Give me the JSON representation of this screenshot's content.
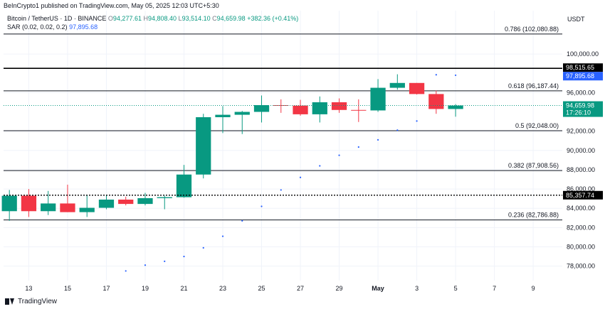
{
  "header": {
    "published": "BeInCrypto1 published on TradingView.com, May 05, 2025 12:03 UTC+5:30"
  },
  "legend": {
    "symbol": "Bitcoin / TetherUS · 1D · BINANCE",
    "o_label": "O",
    "o": "94,277.61",
    "h_label": "H",
    "h": "94,808.40",
    "l_label": "L",
    "l": "93,514.10",
    "c_label": "C",
    "c": "94,659.98",
    "change": "+382.36 (+0.41%)",
    "sar_label": "SAR (0.02, 0.02, 0.2)",
    "sar_value": "97,895.68"
  },
  "footer": {
    "brand": "TradingView"
  },
  "colors": {
    "up": "#089981",
    "down": "#f23645",
    "sar": "#2962ff",
    "line": "#131722",
    "grid": "#f0f3fa",
    "text": "#131722"
  },
  "chart_data": {
    "type": "candlestick",
    "currency": "USDT",
    "ylim": [
      76500,
      104500
    ],
    "y_ticks": [
      {
        "value": 78000,
        "label": "78,000.00"
      },
      {
        "value": 80000,
        "label": "80,000.00"
      },
      {
        "value": 82000,
        "label": "82,000.00"
      },
      {
        "value": 84000,
        "label": "84,000.00"
      },
      {
        "value": 86000,
        "label": "86,000.00"
      },
      {
        "value": 88000,
        "label": "88,000.00"
      },
      {
        "value": 90000,
        "label": "90,000.00"
      },
      {
        "value": 92000,
        "label": "92,000.00"
      },
      {
        "value": 96000,
        "label": "96,000.00"
      },
      {
        "value": 100000,
        "label": "100,000.00"
      }
    ],
    "x_ticks": [
      {
        "day": 13,
        "label": "13"
      },
      {
        "day": 15,
        "label": "15"
      },
      {
        "day": 17,
        "label": "17"
      },
      {
        "day": 19,
        "label": "19"
      },
      {
        "day": 21,
        "label": "21"
      },
      {
        "day": 23,
        "label": "23"
      },
      {
        "day": 25,
        "label": "25"
      },
      {
        "day": 27,
        "label": "27"
      },
      {
        "day": 29,
        "label": "29"
      },
      {
        "day": 31,
        "label": "May"
      },
      {
        "day": 33,
        "label": "3"
      },
      {
        "day": 35,
        "label": "5"
      },
      {
        "day": 37,
        "label": "7"
      },
      {
        "day": 39,
        "label": "9"
      }
    ],
    "x_range": [
      11.7,
      40.5
    ],
    "candles": [
      {
        "day": 12,
        "o": 83700,
        "h": 85900,
        "l": 82700,
        "c": 85300
      },
      {
        "day": 13,
        "o": 85300,
        "h": 86000,
        "l": 83100,
        "c": 83700
      },
      {
        "day": 14,
        "o": 83700,
        "h": 85800,
        "l": 83300,
        "c": 84500
      },
      {
        "day": 15,
        "o": 84500,
        "h": 86450,
        "l": 83600,
        "c": 83600
      },
      {
        "day": 16,
        "o": 83600,
        "h": 85400,
        "l": 83100,
        "c": 84050
      },
      {
        "day": 17,
        "o": 84050,
        "h": 85400,
        "l": 83900,
        "c": 84900
      },
      {
        "day": 18,
        "o": 84900,
        "h": 85200,
        "l": 84300,
        "c": 84450
      },
      {
        "day": 19,
        "o": 84450,
        "h": 85600,
        "l": 84300,
        "c": 85050
      },
      {
        "day": 20,
        "o": 85050,
        "h": 85300,
        "l": 83900,
        "c": 85150
      },
      {
        "day": 21,
        "o": 85150,
        "h": 88500,
        "l": 85100,
        "c": 87500
      },
      {
        "day": 22,
        "o": 87500,
        "h": 93800,
        "l": 87100,
        "c": 93450
      },
      {
        "day": 23,
        "o": 93450,
        "h": 94600,
        "l": 91800,
        "c": 93700
      },
      {
        "day": 24,
        "o": 93700,
        "h": 94100,
        "l": 91700,
        "c": 94000
      },
      {
        "day": 25,
        "o": 94000,
        "h": 95700,
        "l": 92900,
        "c": 94700
      },
      {
        "day": 26,
        "o": 94700,
        "h": 95300,
        "l": 93900,
        "c": 94650
      },
      {
        "day": 27,
        "o": 94650,
        "h": 95250,
        "l": 93600,
        "c": 93750
      },
      {
        "day": 28,
        "o": 93750,
        "h": 95600,
        "l": 92900,
        "c": 95000
      },
      {
        "day": 29,
        "o": 95000,
        "h": 95400,
        "l": 93900,
        "c": 94200
      },
      {
        "day": 30,
        "o": 94200,
        "h": 95300,
        "l": 92950,
        "c": 94150
      },
      {
        "day": 31,
        "o": 94150,
        "h": 97400,
        "l": 94000,
        "c": 96500
      },
      {
        "day": 32,
        "o": 96500,
        "h": 97900,
        "l": 96300,
        "c": 97000
      },
      {
        "day": 33,
        "o": 97000,
        "h": 97000,
        "l": 95800,
        "c": 95850
      },
      {
        "day": 34,
        "o": 95850,
        "h": 96200,
        "l": 93800,
        "c": 94300
      },
      {
        "day": 35,
        "o": 94300,
        "h": 94800,
        "l": 93500,
        "c": 94660
      }
    ],
    "sar": [
      {
        "day": 18,
        "value": 77500
      },
      {
        "day": 19,
        "value": 78100
      },
      {
        "day": 20,
        "value": 78500
      },
      {
        "day": 21,
        "value": 79000
      },
      {
        "day": 22,
        "value": 79900
      },
      {
        "day": 23,
        "value": 81100
      },
      {
        "day": 24,
        "value": 82700
      },
      {
        "day": 25,
        "value": 84200
      },
      {
        "day": 26,
        "value": 85900
      },
      {
        "day": 27,
        "value": 87200
      },
      {
        "day": 28,
        "value": 88400
      },
      {
        "day": 29,
        "value": 89500
      },
      {
        "day": 30,
        "value": 90350
      },
      {
        "day": 31,
        "value": 91100
      },
      {
        "day": 32,
        "value": 92100
      },
      {
        "day": 33,
        "value": 93050
      },
      {
        "day": 34,
        "value": 97850
      },
      {
        "day": 35,
        "value": 97800
      }
    ],
    "fib_levels": [
      {
        "value": 102080.88,
        "label": "0.786 (102,080.88)"
      },
      {
        "value": 96187.44,
        "label": "0.618 (96,187.44)"
      },
      {
        "value": 92048.0,
        "label": "0.5 (92,048.00)"
      },
      {
        "value": 87908.56,
        "label": "0.382 (87,908.56)"
      },
      {
        "value": 82786.88,
        "label": "0.236 (82,786.88)"
      }
    ],
    "resistance": {
      "value": 98515.65,
      "label": "98,515.65"
    },
    "support": {
      "value": 85357.74,
      "label": "85,357.74"
    },
    "sar_badge": {
      "value": 97895.68,
      "label": "97,895.68"
    },
    "last_price": {
      "value": 94659.98,
      "label": "94,659.98",
      "countdown": "17:26:10"
    }
  }
}
